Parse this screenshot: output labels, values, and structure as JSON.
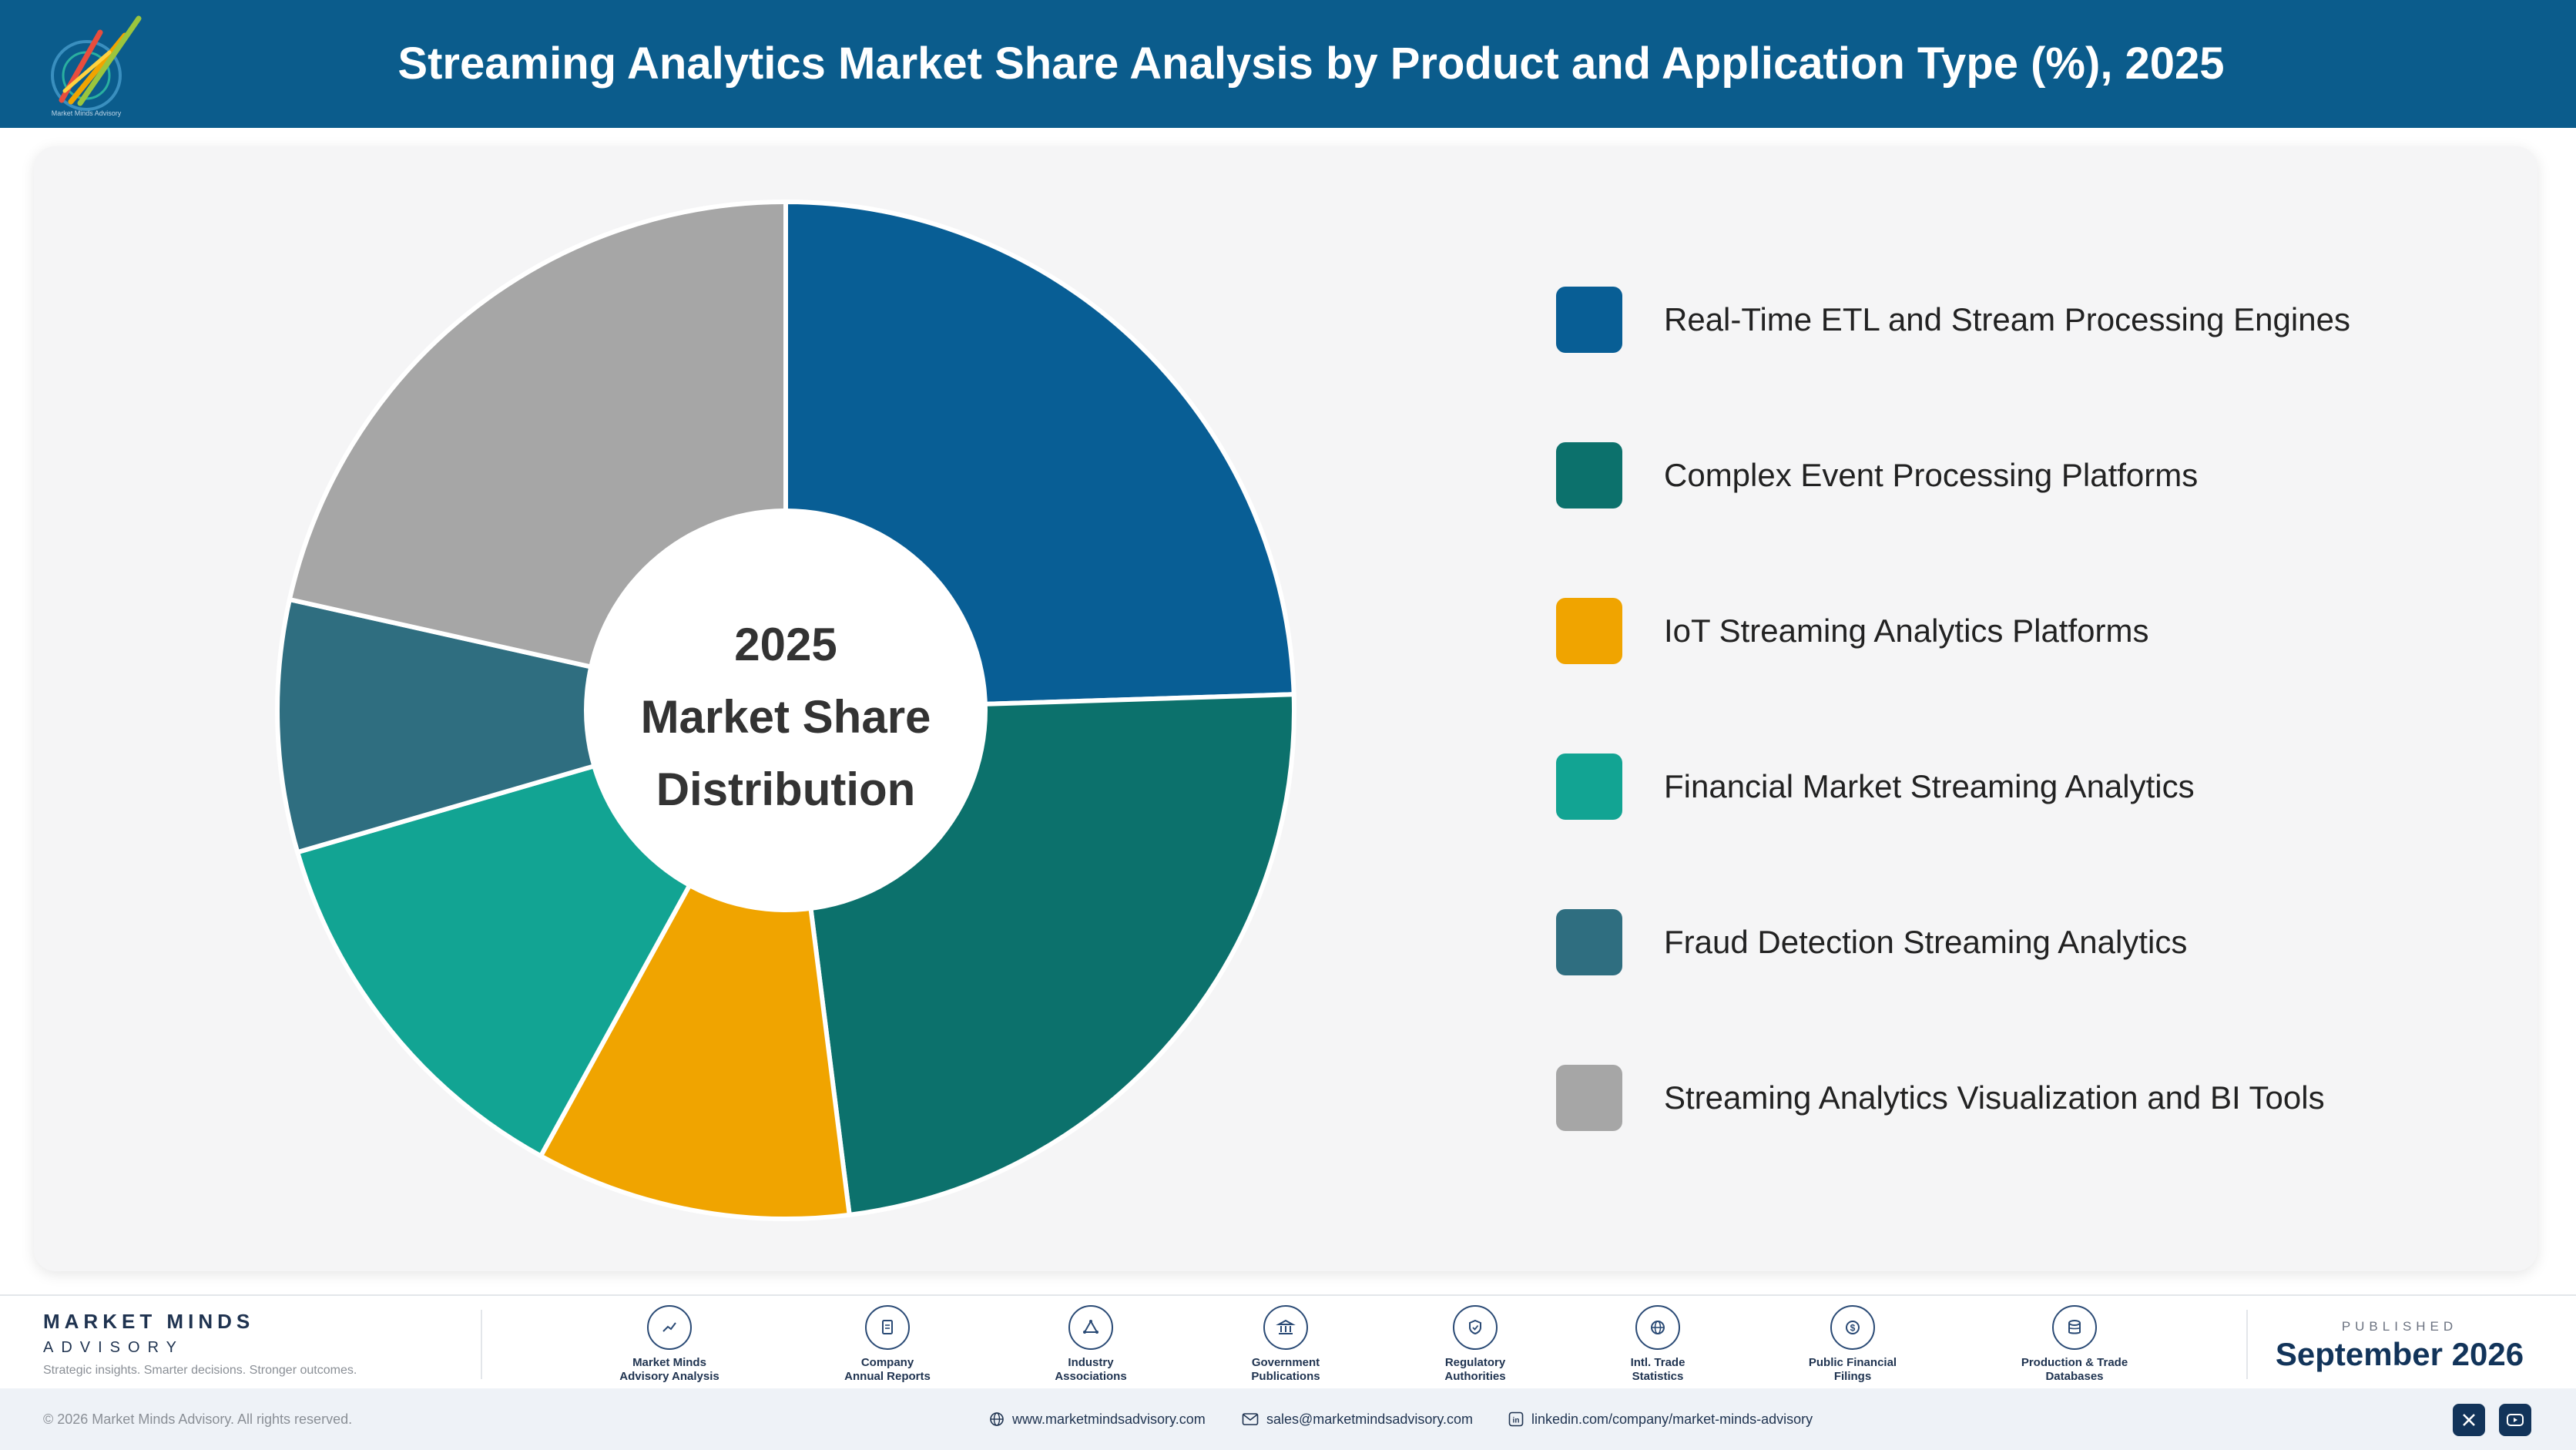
{
  "header": {
    "title": "Streaming Analytics Market Share Analysis by Product and Application Type (%), 2025",
    "logo_text": "Market Minds Advisory"
  },
  "chart_data": {
    "type": "pie",
    "style": "donut",
    "title": "Streaming Analytics Market Share Analysis by Product and Application Type (%), 2025",
    "center_label": [
      "2025",
      "Market Share",
      "Distribution"
    ],
    "categories": [
      "Real-Time ETL and Stream Processing Engines",
      "Complex Event Processing Platforms",
      "IoT Streaming Analytics Platforms",
      "Financial Market Streaming Analytics",
      "Fraud Detection Streaming Analytics",
      "Streaming Analytics Visualization and BI Tools"
    ],
    "values": [
      24.5,
      23.5,
      10,
      12.5,
      8,
      21.5
    ],
    "colors": [
      "#085e95",
      "#0c716c",
      "#f0a400",
      "#12a493",
      "#2f6e80",
      "#a6a6a6"
    ],
    "legend_position": "right",
    "data_labels": false
  },
  "footer": {
    "brand_name": "MARKET MINDS",
    "brand_sub": "ADVISORY",
    "tagline": "Strategic insights. Smarter decisions. Stronger outcomes.",
    "sources": [
      {
        "line1": "Market Minds",
        "line2": "Advisory Analysis",
        "icon": "trend-chart-icon"
      },
      {
        "line1": "Company",
        "line2": "Annual Reports",
        "icon": "document-icon"
      },
      {
        "line1": "Industry",
        "line2": "Associations",
        "icon": "network-icon"
      },
      {
        "line1": "Government",
        "line2": "Publications",
        "icon": "building-icon"
      },
      {
        "line1": "Regulatory",
        "line2": "Authorities",
        "icon": "shield-icon"
      },
      {
        "line1": "Intl. Trade",
        "line2": "Statistics",
        "icon": "globe-icon"
      },
      {
        "line1": "Public Financial",
        "line2": "Filings",
        "icon": "dollar-icon"
      },
      {
        "line1": "Production & Trade",
        "line2": "Databases",
        "icon": "database-icon"
      }
    ],
    "published_label": "PUBLISHED",
    "published_date": "September 2026"
  },
  "bottombar": {
    "copyright": "© 2026 Market Minds Advisory. All rights reserved.",
    "website": "www.marketmindsadvisory.com",
    "email": "sales@marketmindsadvisory.com",
    "linkedin": "linkedin.com/company/market-minds-advisory",
    "social": [
      "x-icon",
      "youtube-icon"
    ]
  }
}
